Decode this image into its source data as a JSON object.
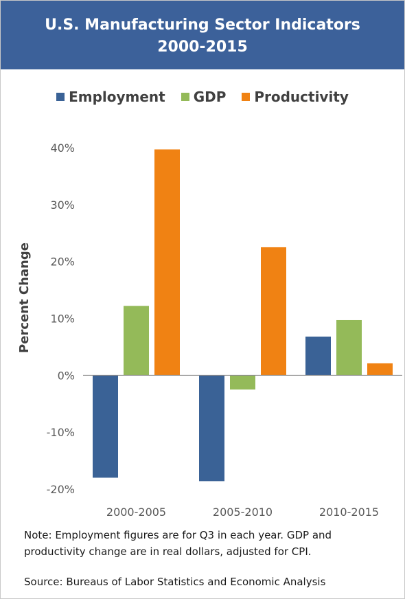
{
  "header": {
    "title_line1": "U.S. Manufacturing Sector Indicators",
    "title_line2": "2000-2015"
  },
  "colors": {
    "header_background": "#3c619a",
    "employment": "#3a6296",
    "gdp": "#94ba59",
    "productivity": "#f08213"
  },
  "chart_data": {
    "type": "bar",
    "title": "U.S. Manufacturing Sector Indicators 2000-2015",
    "xlabel": "",
    "ylabel": "Percent Change",
    "categories": [
      "2000-2005",
      "2005-2010",
      "2010-2015"
    ],
    "series": [
      {
        "name": "Employment",
        "values": [
          -18.0,
          -18.6,
          6.8
        ]
      },
      {
        "name": "GDP",
        "values": [
          12.2,
          -2.5,
          9.7
        ]
      },
      {
        "name": "Productivity",
        "values": [
          39.7,
          22.5,
          2.1
        ]
      }
    ],
    "ylim": [
      -20,
      40
    ],
    "yticks": [
      40,
      30,
      20,
      10,
      0,
      -10,
      -20
    ],
    "ytick_labels": [
      "40%",
      "30%",
      "20%",
      "10%",
      "0%",
      "-10%",
      "-20%"
    ],
    "grid": false,
    "legend_position": "top"
  },
  "footer": {
    "note": "Note: Employment figures are for Q3 in each year. GDP and productivity change are in real dollars, adjusted for CPI.",
    "source": "Source: Bureaus of Labor Statistics and Economic Analysis"
  }
}
